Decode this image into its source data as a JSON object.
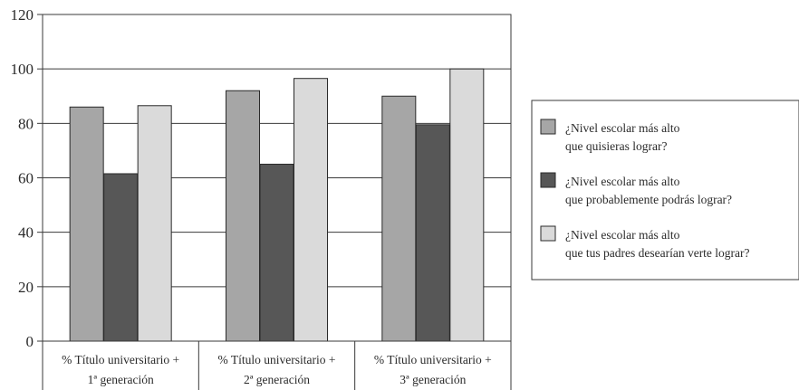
{
  "chart_data": {
    "type": "bar",
    "categories": [
      [
        "% Título universitario +",
        "1ª generación"
      ],
      [
        "% Título universitario +",
        "2ª generación"
      ],
      [
        "% Título universitario +",
        "3ª generación"
      ]
    ],
    "series": [
      {
        "name": "¿Nivel escolar más alto que quisieras lograr?",
        "name_lines": [
          "¿Nivel escolar más alto",
          "que quisieras lograr?"
        ],
        "color": "#a6a6a6",
        "values": [
          86,
          92,
          90
        ]
      },
      {
        "name": "¿Nivel escolar más alto que probablemente podrás lograr?",
        "name_lines": [
          "¿Nivel escolar más alto",
          "que probablemente podrás lograr?"
        ],
        "color": "#575757",
        "values": [
          61.5,
          65,
          79.5
        ]
      },
      {
        "name": "¿Nivel escolar más alto que tus padres desearían verte lograr?",
        "name_lines": [
          "¿Nivel escolar más alto",
          "que tus padres desearían verte lograr?"
        ],
        "color": "#dadada",
        "values": [
          86.5,
          96.5,
          100
        ]
      }
    ],
    "ylim": [
      0,
      120
    ],
    "yticks": [
      0,
      20,
      40,
      60,
      80,
      100,
      120
    ],
    "ytick_labels": [
      "0",
      "20",
      "40",
      "60",
      "80",
      "100",
      "120"
    ],
    "title": "",
    "xlabel": "",
    "ylabel": "",
    "grid": "horizontal",
    "legend_position": "right"
  }
}
